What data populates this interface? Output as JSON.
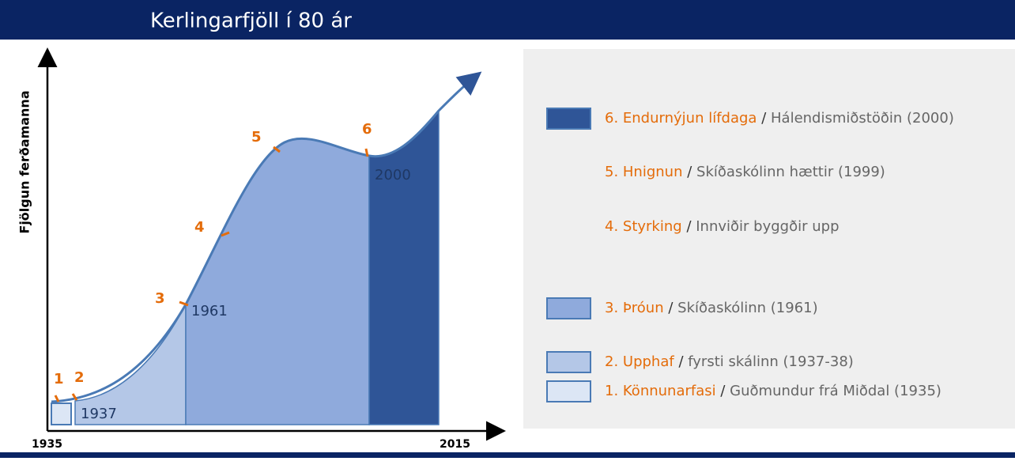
{
  "header": {
    "title": "Kerlingarfjöll í 80 ár"
  },
  "axis": {
    "y_label": "Fjölgun ferðamanna",
    "x_start": "1935",
    "x_end": "2015"
  },
  "stages": [
    "1",
    "2",
    "3",
    "4",
    "5",
    "6"
  ],
  "years": [
    "1937",
    "1961",
    "2000"
  ],
  "legend_separator": "/",
  "legend": [
    {
      "name": "6. Endurnýjun lífdaga",
      "desc": "Hálendismiðstöðin (2000)"
    },
    {
      "name": "5. Hnignun",
      "desc": "Skíðaskólinn hættir (1999)"
    },
    {
      "name": "4. Styrking",
      "desc": "Innviðir byggðir upp"
    },
    {
      "name": "3. Þróun",
      "desc": "Skíðaskólinn (1961)"
    },
    {
      "name": "2. Upphaf",
      "desc": "fyrsti skálinn (1937-38)"
    },
    {
      "name": "1. Könnunarfasi",
      "desc": "Guðmundur frá Miðdal (1935)"
    }
  ]
}
